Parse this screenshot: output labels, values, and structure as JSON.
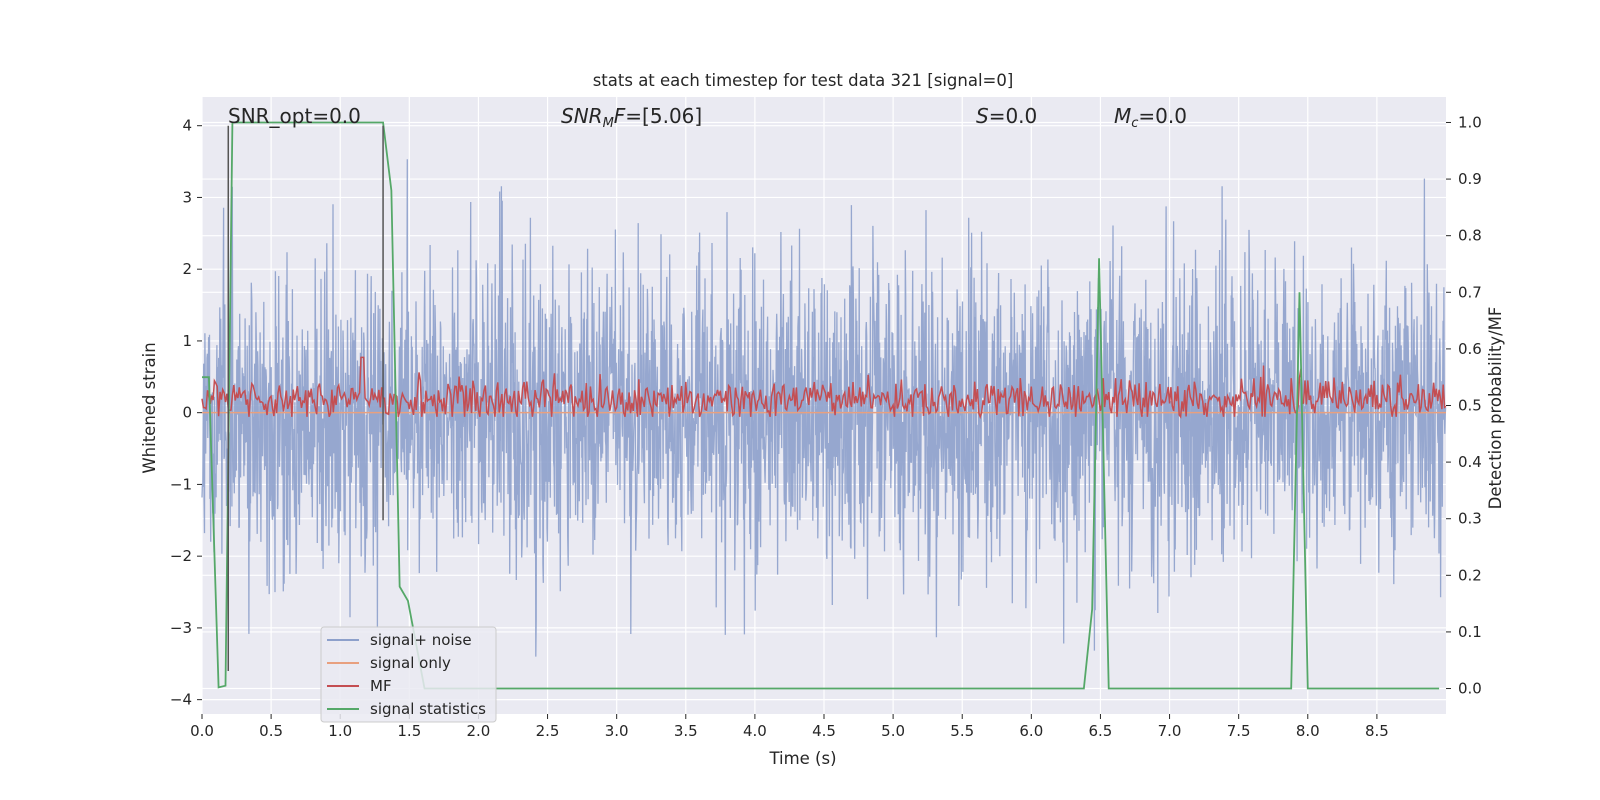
{
  "chart_data": {
    "type": "line",
    "title": "stats at each timestep for test data 321 [signal=0]",
    "xlabel": "Time (s)",
    "ylabel_left": "Whitened strain",
    "ylabel_right": "Detection probability/MF",
    "xlim": [
      0.0,
      9.0
    ],
    "ylim_left": [
      -4.2,
      4.4
    ],
    "ylim_right": [
      -0.045,
      1.045
    ],
    "x_ticks": [
      0.0,
      0.5,
      1.0,
      1.5,
      2.0,
      2.5,
      3.0,
      3.5,
      4.0,
      4.5,
      5.0,
      5.5,
      6.0,
      6.5,
      7.0,
      7.5,
      8.0,
      8.5
    ],
    "x_tick_labels": [
      "0.0",
      "0.5",
      "1.0",
      "1.5",
      "2.0",
      "2.5",
      "3.0",
      "3.5",
      "4.0",
      "4.5",
      "5.0",
      "5.5",
      "6.0",
      "6.5",
      "7.0",
      "7.5",
      "8.0",
      "8.5"
    ],
    "y_left_ticks": [
      -4,
      -3,
      -2,
      -1,
      0,
      1,
      2,
      3,
      4
    ],
    "y_left_tick_labels": [
      "−4",
      "−3",
      "−2",
      "−1",
      "0",
      "1",
      "2",
      "3",
      "4"
    ],
    "y_right_ticks": [
      0.0,
      0.1,
      0.2,
      0.3,
      0.4,
      0.5,
      0.6,
      0.7,
      0.8,
      0.9,
      1.0
    ],
    "y_right_tick_labels": [
      "0.0",
      "0.1",
      "0.2",
      "0.3",
      "0.4",
      "0.5",
      "0.6",
      "0.7",
      "0.8",
      "0.9",
      "1.0"
    ],
    "grid": true,
    "annotations": [
      {
        "text": "SNR_opt=0.0",
        "x": 0.2,
        "y": 4.1
      },
      {
        "text": "SNRMF=[5.06]",
        "x": 2.6,
        "y": 4.1
      },
      {
        "text": "S=0.0",
        "x": 5.6,
        "y": 4.1
      },
      {
        "text": "Mc=0.0",
        "x": 6.6,
        "y": 4.1
      }
    ],
    "legend": {
      "placement": "lower-left",
      "entries": [
        "signal+ noise",
        "signal only",
        "MF",
        "signal statistics"
      ]
    },
    "colors": {
      "noise": "#8da0cb",
      "signal": "#e8a07f",
      "mf": "#c44e52",
      "stats": "#55a868",
      "vline": "#555555",
      "background": "#eaeaf2",
      "grid": "#ffffff"
    },
    "series": [
      {
        "name": "signal+ noise",
        "axis": "left",
        "representation": "dense whitened noise, approx. gaussian, peak amplitude about ±3.5, sampled every 0.003 s",
        "sample_dt": 0.003
      },
      {
        "name": "signal only",
        "axis": "left",
        "x": [
          0.0,
          9.0
        ],
        "y": [
          0.0,
          0.0
        ]
      },
      {
        "name": "MF",
        "axis": "right",
        "representation": "noisy matched-filter output centred near 0.51, range about 0.48–0.58, spike 0.64 at t≈1.16",
        "sample_dt": 0.01
      },
      {
        "name": "signal statistics",
        "axis": "right",
        "x": [
          0.0,
          0.05,
          0.12,
          0.17,
          0.22,
          0.26,
          1.31,
          1.37,
          1.43,
          1.49,
          1.61,
          6.38,
          6.44,
          6.49,
          6.56,
          7.88,
          7.94,
          8.0,
          8.95
        ],
        "y": [
          0.55,
          0.55,
          0.002,
          0.005,
          1.0,
          1.0,
          1.0,
          0.88,
          0.18,
          0.155,
          0.0,
          0.0,
          0.14,
          0.76,
          0.0,
          0.0,
          0.7,
          0.0,
          0.0
        ]
      }
    ],
    "vlines": [
      {
        "x": 0.19,
        "ymin": -3.6,
        "ymax": 4.0
      },
      {
        "x": 1.31,
        "ymin": -1.5,
        "ymax": 4.0
      }
    ]
  }
}
